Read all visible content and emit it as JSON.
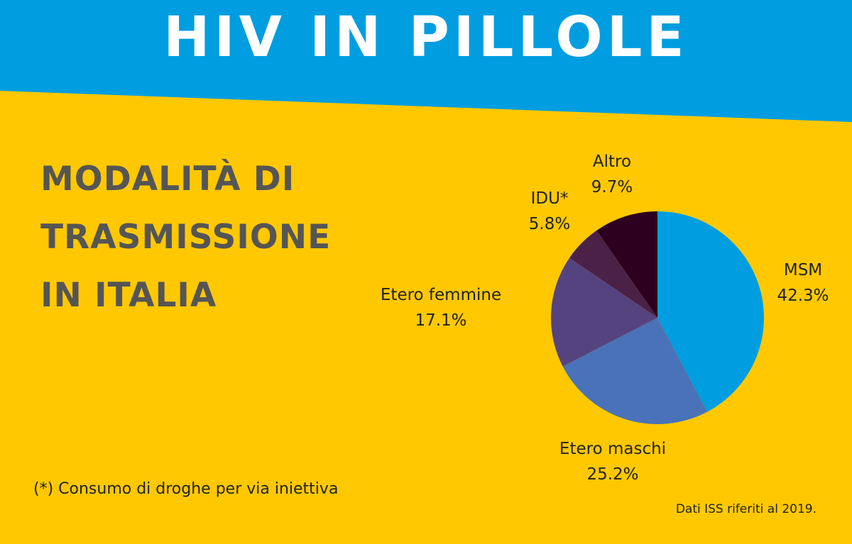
{
  "header": {
    "title": "HIV IN PILLOLE",
    "band_color": "#009ee0",
    "background_color": "#ffc800"
  },
  "subtitle_lines": [
    "MODALITÀ DI",
    "TRASMISSIONE",
    "IN ITALIA"
  ],
  "chart_data": {
    "type": "pie",
    "title": "",
    "slices": [
      {
        "label": "MSM",
        "value": 42.3,
        "display": "42.3%",
        "color": "#009ee0"
      },
      {
        "label": "Etero maschi",
        "value": 25.2,
        "display": "25.2%",
        "color": "#4a72b8"
      },
      {
        "label": "Etero femmine",
        "value": 17.1,
        "display": "17.1%",
        "color": "#55437f"
      },
      {
        "label": "IDU*",
        "value": 5.8,
        "display": "5.8%",
        "color": "#4b2148"
      },
      {
        "label": "Altro",
        "value": 9.7,
        "display": "9.7%",
        "color": "#2d0020"
      }
    ],
    "start": "top",
    "direction": "clockwise"
  },
  "footnote": "(*) Consumo di droghe per via iniettiva",
  "source": "Dati ISS riferiti al 2019."
}
